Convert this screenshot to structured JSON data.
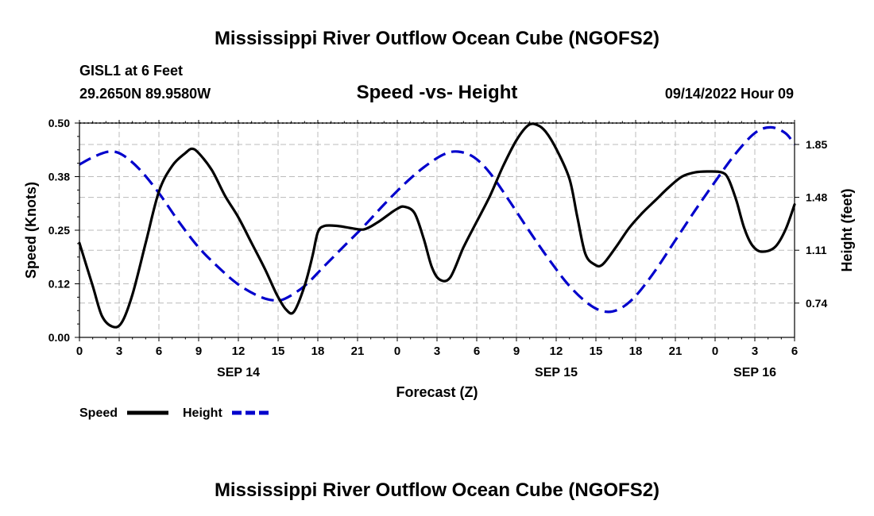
{
  "header": {
    "title": "Mississippi River Outflow Ocean Cube (NGOFS2)",
    "station": "GISL1 at 6 Feet",
    "location": "29.2650N  89.9580W",
    "timestamp": "09/14/2022 Hour 09"
  },
  "footer": {
    "title": "Mississippi River Outflow Ocean Cube (NGOFS2)"
  },
  "chart_data": {
    "type": "line",
    "title": "Speed -vs- Height",
    "xlabel": "Forecast (Z)",
    "ylabel": "Speed (Knots)",
    "y2label": "Height (feet)",
    "x_range_hours": [
      0,
      54
    ],
    "x_tick_labels": [
      "0",
      "3",
      "6",
      "9",
      "12",
      "15",
      "18",
      "21",
      "0",
      "3",
      "6",
      "9",
      "12",
      "15",
      "18",
      "21",
      "0",
      "3",
      "6"
    ],
    "day_labels": [
      {
        "label": "SEP 14",
        "hour": 12
      },
      {
        "label": "SEP 15",
        "hour": 36
      },
      {
        "label": "SEP 16",
        "hour": 51
      }
    ],
    "ylim": [
      0,
      0.5
    ],
    "y_ticks": [
      "0.00",
      "0.12",
      "0.25",
      "0.38",
      "0.50"
    ],
    "y2lim": [
      0.5,
      2.0
    ],
    "y2_ticks": [
      "0.74",
      "1.11",
      "1.48",
      "1.85"
    ],
    "grid": true,
    "legend_position": "bottom-left",
    "series": [
      {
        "name": "Speed",
        "axis": "left",
        "color": "#000000",
        "style": "solid",
        "x": [
          0,
          1,
          1.7,
          2.5,
          3.2,
          4,
          5,
          6,
          7,
          8,
          8.5,
          9,
          10,
          11,
          12,
          13,
          14,
          14.9,
          15.6,
          16.2,
          17,
          17.6,
          18,
          18.5,
          19.5,
          20.5,
          21.5,
          22.5,
          23.5,
          24,
          24.5,
          25.3,
          26,
          26.6,
          27.2,
          28,
          29,
          30,
          31,
          32,
          33,
          33.9,
          34.6,
          35.2,
          36,
          37,
          37.6,
          38.2,
          38.9,
          39.5,
          40.5,
          41.5,
          42.5,
          43.5,
          44.5,
          45.5,
          46.5,
          47.5,
          48.5,
          49,
          49.6,
          50.2,
          50.8,
          51.5,
          52.5,
          53.3,
          54
        ],
        "values": [
          0.22,
          0.12,
          0.05,
          0.025,
          0.035,
          0.1,
          0.22,
          0.34,
          0.4,
          0.43,
          0.44,
          0.43,
          0.39,
          0.33,
          0.28,
          0.22,
          0.16,
          0.1,
          0.065,
          0.06,
          0.12,
          0.19,
          0.245,
          0.26,
          0.26,
          0.255,
          0.252,
          0.268,
          0.29,
          0.3,
          0.305,
          0.29,
          0.23,
          0.165,
          0.135,
          0.14,
          0.21,
          0.27,
          0.33,
          0.4,
          0.46,
          0.495,
          0.495,
          0.48,
          0.44,
          0.37,
          0.28,
          0.195,
          0.17,
          0.17,
          0.21,
          0.255,
          0.29,
          0.32,
          0.35,
          0.375,
          0.385,
          0.387,
          0.385,
          0.37,
          0.32,
          0.255,
          0.215,
          0.2,
          0.21,
          0.25,
          0.31
        ]
      },
      {
        "name": "Height",
        "axis": "right",
        "color": "#0000cc",
        "style": "dashed",
        "x": [
          0,
          1,
          2.2,
          3.2,
          4.5,
          6,
          7.5,
          9,
          10.5,
          12,
          13.5,
          14.6,
          15.5,
          17,
          18.5,
          20,
          21.5,
          23,
          24.5,
          26,
          27.5,
          28.6,
          29.8,
          31,
          32.5,
          34,
          35.5,
          37,
          38.5,
          39.7,
          40.8,
          42,
          43.5,
          45,
          46.5,
          48,
          49.5,
          51,
          52.2,
          53.3,
          54
        ],
        "values": [
          1.71,
          1.76,
          1.8,
          1.78,
          1.68,
          1.51,
          1.31,
          1.13,
          0.99,
          0.87,
          0.79,
          0.76,
          0.77,
          0.86,
          1.0,
          1.14,
          1.28,
          1.43,
          1.57,
          1.69,
          1.78,
          1.8,
          1.76,
          1.65,
          1.45,
          1.24,
          1.04,
          0.86,
          0.73,
          0.68,
          0.7,
          0.79,
          0.97,
          1.18,
          1.39,
          1.59,
          1.78,
          1.93,
          1.97,
          1.93,
          1.85
        ]
      }
    ]
  }
}
